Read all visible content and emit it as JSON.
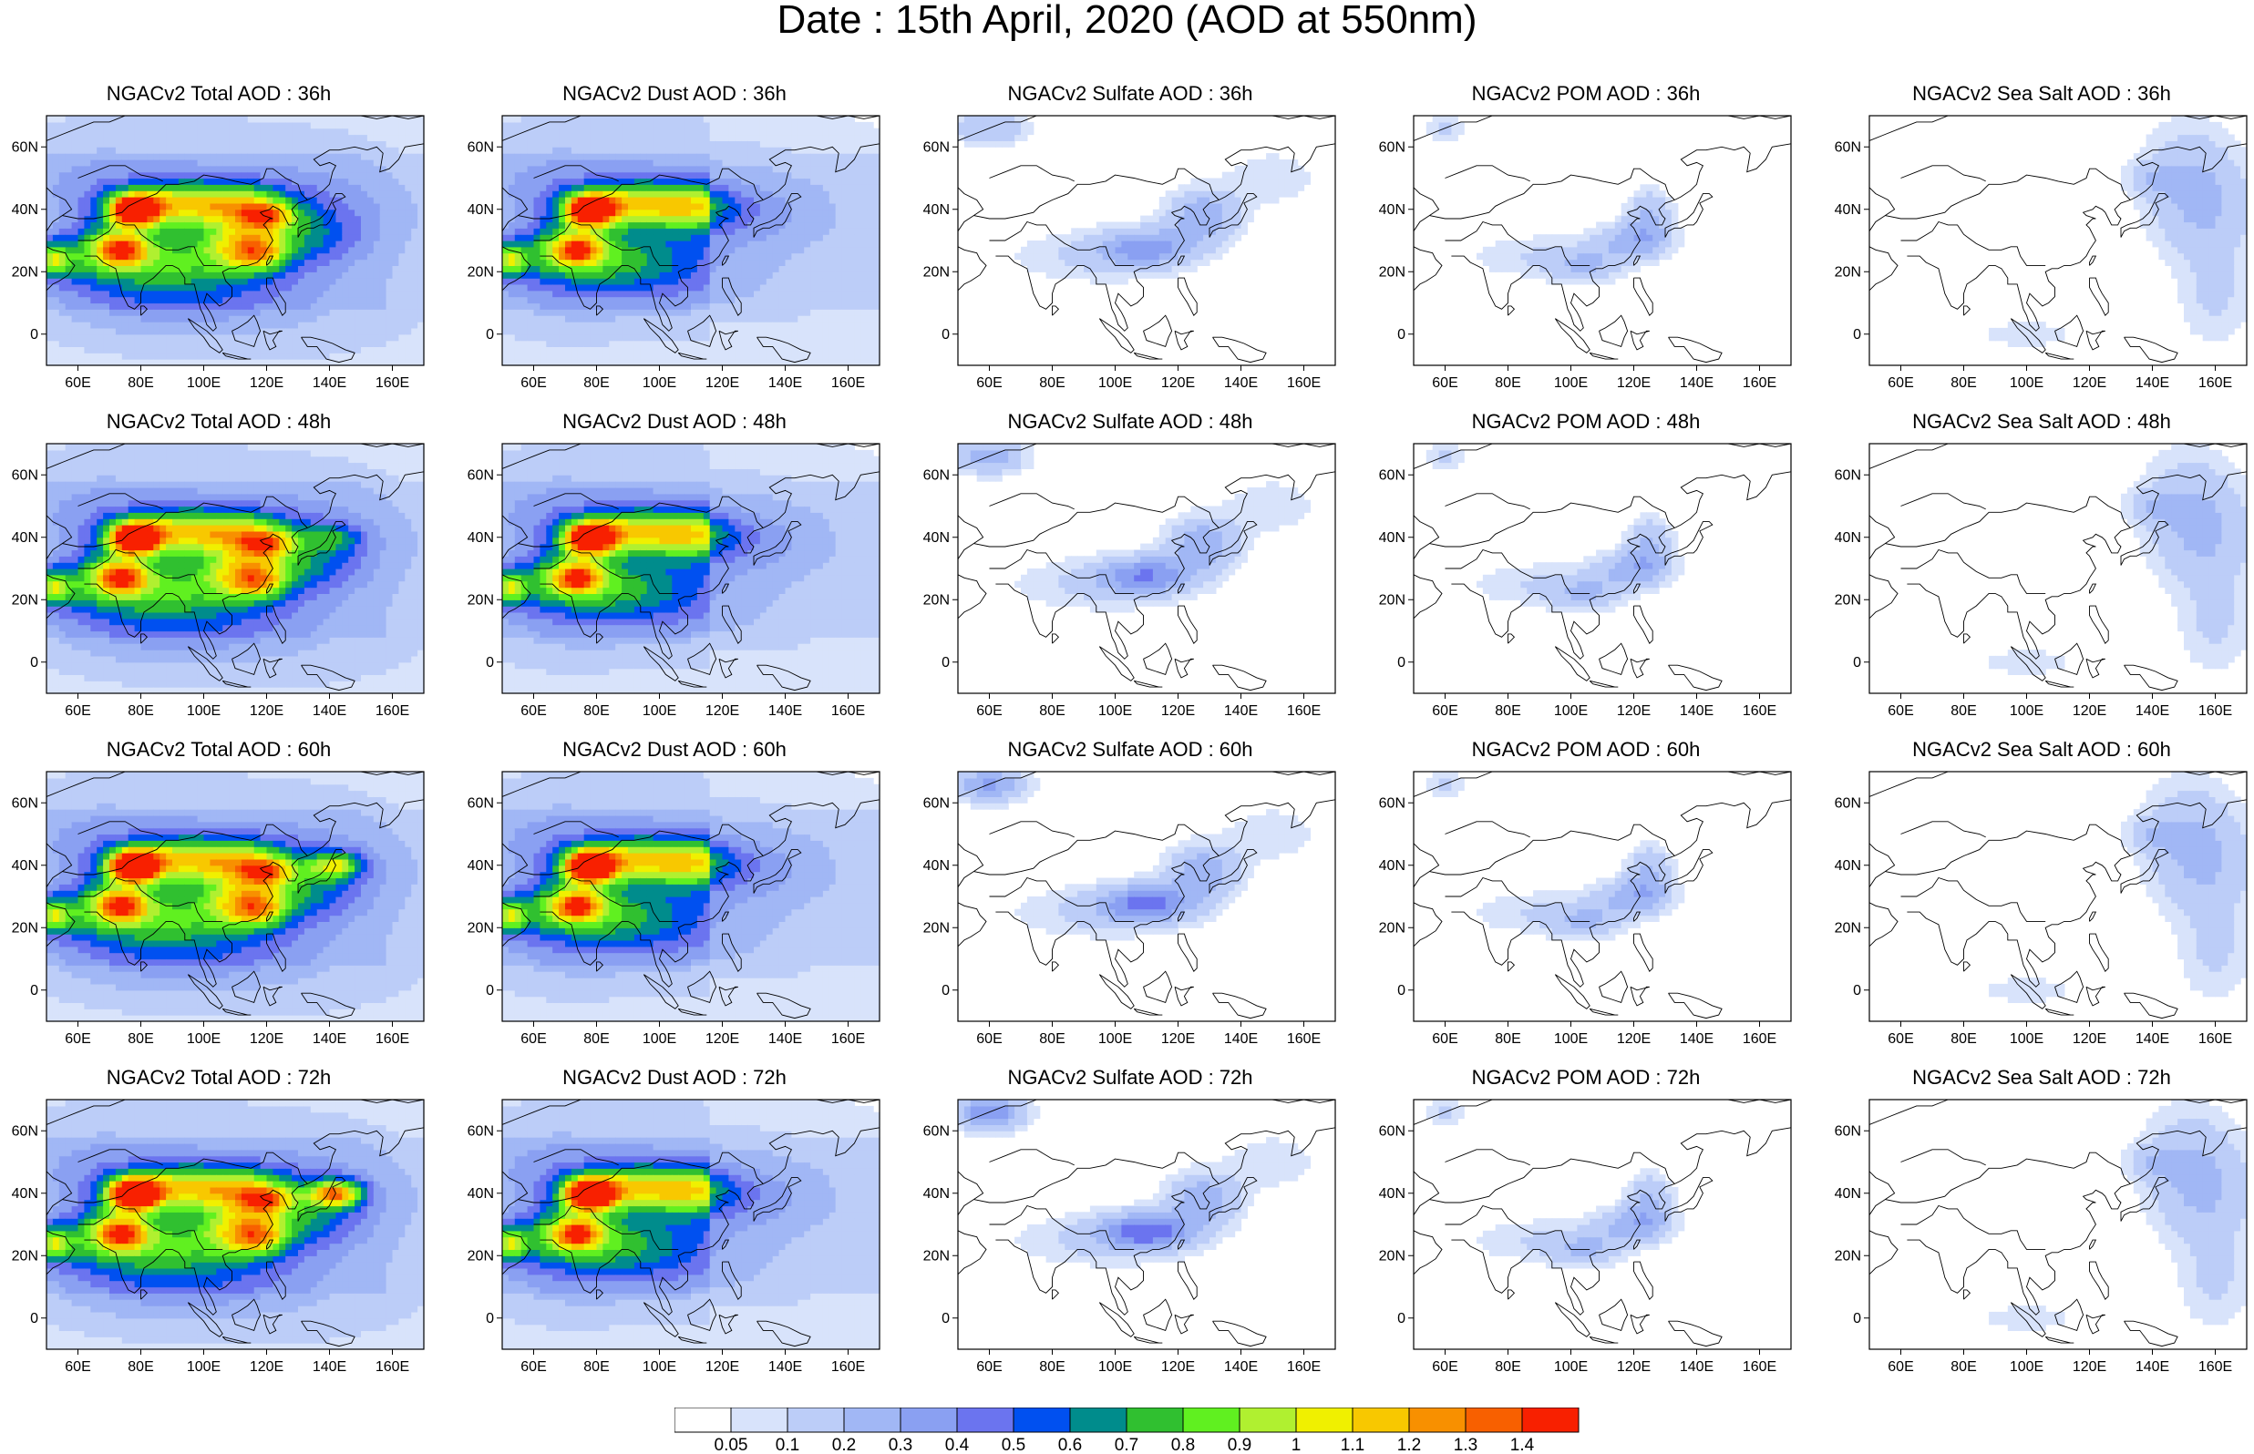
{
  "title": "Date : 15th April, 2020 (AOD at 550nm)",
  "columns": [
    "Total",
    "Dust",
    "Sulfate",
    "POM",
    "SeaSalt"
  ],
  "panels": [
    [
      "NGACv2 Total AOD : 36h",
      "NGACv2 Dust AOD : 36h",
      "NGACv2 Sulfate AOD : 36h",
      "NGACv2 POM AOD : 36h",
      "NGACv2 Sea Salt AOD : 36h"
    ],
    [
      "NGACv2 Total AOD : 48h",
      "NGACv2 Dust AOD : 48h",
      "NGACv2 Sulfate AOD : 48h",
      "NGACv2 POM AOD : 48h",
      "NGACv2 Sea Salt AOD : 48h"
    ],
    [
      "NGACv2 Total AOD : 60h",
      "NGACv2 Dust AOD : 60h",
      "NGACv2 Sulfate AOD : 60h",
      "NGACv2 POM AOD : 60h",
      "NGACv2 Sea Salt AOD : 60h"
    ],
    [
      "NGACv2 Total AOD : 72h",
      "NGACv2 Dust AOD : 72h",
      "NGACv2 Sulfate AOD : 72h",
      "NGACv2 POM AOD : 72h",
      "NGACv2 Sea Salt  AOD : 72h"
    ]
  ],
  "map": {
    "lon_ticks": [
      "60E",
      "80E",
      "100E",
      "120E",
      "140E",
      "160E"
    ],
    "lat_ticks": [
      "60N",
      "40N",
      "20N",
      "0"
    ],
    "lon_range": [
      50,
      170
    ],
    "lat_range": [
      -10,
      70
    ]
  },
  "colorbar": {
    "labels": [
      "0.05",
      "0.1",
      "0.2",
      "0.3",
      "0.4",
      "0.5",
      "0.6",
      "0.7",
      "0.8",
      "0.9",
      "1",
      "1.1",
      "1.2",
      "1.3",
      "1.4"
    ],
    "colors": [
      "#ffffff",
      "#d8e3fb",
      "#bccdf8",
      "#a1b7f5",
      "#8aa0f2",
      "#6b74ef",
      "#0050f0",
      "#008c8c",
      "#30c030",
      "#60f020",
      "#b0f030",
      "#f0f000",
      "#f8c800",
      "#f89000",
      "#f86000",
      "#f82000"
    ]
  }
}
